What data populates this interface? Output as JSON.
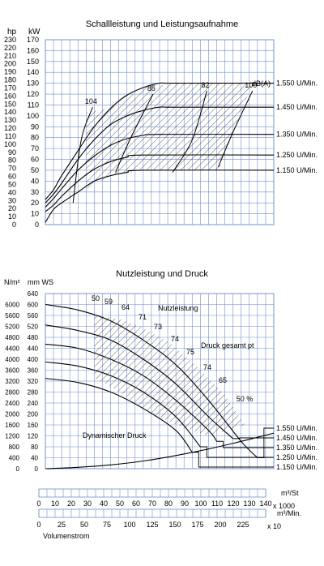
{
  "chart_data": [
    {
      "type": "line",
      "title": "Schallleistung und Leistungsaufnahme",
      "y_units": [
        "hp",
        "kW"
      ],
      "hp_ticks": [
        "0",
        "10",
        "20",
        "30",
        "40",
        "50",
        "60",
        "70",
        "80",
        "90",
        "100",
        "110",
        "120",
        "130",
        "140",
        "150",
        "160",
        "170",
        "180",
        "190",
        "200",
        "210",
        "220",
        "230"
      ],
      "kw_ticks": [
        "0",
        "10",
        "20",
        "30",
        "40",
        "50",
        "60",
        "70",
        "80",
        "90",
        "100",
        "110",
        "120",
        "130",
        "140",
        "150",
        "160",
        "170"
      ],
      "ylim": [
        0,
        170
      ],
      "xlim": [
        0,
        140
      ],
      "grid": true,
      "series": [
        {
          "name": "1.550 U/Min.",
          "x": [
            0,
            5,
            10,
            20,
            30,
            40,
            50,
            60,
            70,
            80,
            140
          ],
          "values": [
            23,
            32,
            45,
            68,
            90,
            107,
            119,
            126,
            130,
            130,
            130
          ]
        },
        {
          "name": "1.450 U/Min.",
          "x": [
            0,
            5,
            10,
            20,
            30,
            40,
            50,
            60,
            70,
            80,
            140
          ],
          "values": [
            20,
            28,
            38,
            60,
            78,
            92,
            100,
            105,
            108,
            108,
            108
          ]
        },
        {
          "name": "1.350 U/Min.",
          "x": [
            0,
            5,
            10,
            20,
            30,
            40,
            50,
            60,
            70,
            140
          ],
          "values": [
            16,
            24,
            33,
            50,
            63,
            73,
            79,
            82,
            83,
            83
          ]
        },
        {
          "name": "1.250 U/Min.",
          "x": [
            0,
            5,
            10,
            20,
            30,
            40,
            50,
            60,
            140
          ],
          "values": [
            12,
            18,
            26,
            40,
            51,
            58,
            62,
            64,
            64
          ]
        },
        {
          "name": "1.150 U/Min.",
          "x": [
            0,
            5,
            10,
            20,
            30,
            40,
            50,
            60,
            140
          ],
          "values": [
            2,
            14,
            20,
            30,
            40,
            45,
            48,
            50,
            50
          ]
        }
      ],
      "sound_lines": [
        {
          "label": "104",
          "x": [
            29,
            22,
            17
          ],
          "values": [
            108,
            78,
            20
          ]
        },
        {
          "label": "85",
          "x": [
            66,
            53,
            43
          ],
          "values": [
            120,
            82,
            48
          ]
        },
        {
          "label": "82",
          "x": [
            99,
            90,
            78
          ],
          "values": [
            123,
            78,
            48
          ]
        },
        {
          "label": "100",
          "x": [
            127,
            115,
            106
          ],
          "values": [
            123,
            85,
            53
          ]
        }
      ],
      "sound_unit_label": "dB(A)"
    },
    {
      "type": "line",
      "title": "Nutzleistung und Druck",
      "y_units": [
        "N/m²",
        "mm WS"
      ],
      "pa_ticks": [
        "0",
        "400",
        "800",
        "1200",
        "1600",
        "2000",
        "2400",
        "2800",
        "3200",
        "3600",
        "4000",
        "4400",
        "4800",
        "5200",
        "5600",
        "6000"
      ],
      "mmws_ticks": [
        "0",
        "40",
        "80",
        "120",
        "160",
        "200",
        "240",
        "280",
        "320",
        "360",
        "400",
        "440",
        "480",
        "520",
        "560",
        "600",
        "640"
      ],
      "ylim": [
        0,
        640
      ],
      "xlim": [
        0,
        140
      ],
      "grid": true,
      "series": [
        {
          "name": "1.550 U/Min.",
          "x": [
            0,
            20,
            40,
            60,
            80,
            100,
            120,
            130
          ],
          "values": [
            600,
            580,
            540,
            470,
            380,
            250,
            100,
            40
          ]
        },
        {
          "name": "1.450 U/Min.",
          "x": [
            0,
            20,
            40,
            60,
            80,
            100,
            115
          ],
          "values": [
            525,
            505,
            470,
            400,
            310,
            190,
            110
          ]
        },
        {
          "name": "1.350 U/Min.",
          "x": [
            0,
            20,
            40,
            60,
            80,
            100,
            105
          ],
          "values": [
            455,
            440,
            400,
            340,
            250,
            140,
            100
          ]
        },
        {
          "name": "1.250 U/Min.",
          "x": [
            0,
            20,
            40,
            60,
            80,
            95
          ],
          "values": [
            390,
            375,
            340,
            280,
            190,
            80
          ]
        },
        {
          "name": "1.150 U/Min.",
          "x": [
            0,
            20,
            40,
            60,
            80,
            90
          ],
          "values": [
            330,
            315,
            280,
            220,
            140,
            60
          ]
        }
      ],
      "dynamic_pressure": {
        "label": "Dynamischer Druck",
        "x": [
          0,
          20,
          40,
          60,
          80,
          100,
          120,
          140
        ],
        "values": [
          0,
          5,
          14,
          28,
          48,
          72,
          100,
          130
        ]
      },
      "curve_labels": [
        "Nutzleistung",
        "Druck gesamt pt"
      ],
      "efficiency_labels": [
        "50",
        "59",
        "64",
        "71",
        "73",
        "74",
        "75",
        "74",
        "65",
        "50 %"
      ]
    }
  ],
  "x_axes": {
    "axis1_unit": "m³/St",
    "axis1_ticks": [
      "0",
      "10",
      "20",
      "30",
      "40",
      "50",
      "60",
      "70",
      "80",
      "90",
      "100",
      "110",
      "120",
      "130",
      "140"
    ],
    "axis1_suffix": "x 1000",
    "axis2_unit": "m³/Min.",
    "axis2_ticks": [
      "0",
      "25",
      "50",
      "75",
      "100",
      "125",
      "150",
      "175",
      "200",
      "225"
    ],
    "axis2_suffix": "x 10",
    "xlabel": "Volumenstrom"
  }
}
